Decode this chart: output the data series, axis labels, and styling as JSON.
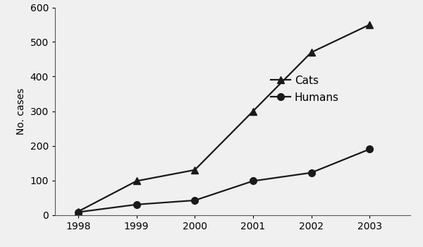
{
  "years": [
    1998,
    1999,
    2000,
    2001,
    2002,
    2003
  ],
  "cats": [
    10,
    98,
    130,
    300,
    470,
    550
  ],
  "humans": [
    8,
    30,
    42,
    98,
    122,
    190
  ],
  "ylabel": "No. cases",
  "ylim": [
    0,
    600
  ],
  "yticks": [
    0,
    100,
    200,
    300,
    400,
    500,
    600
  ],
  "xlim": [
    1997.6,
    2003.7
  ],
  "line_color": "#1a1a1a",
  "marker_triangle": "^",
  "marker_circle": "o",
  "marker_size": 7,
  "line_width": 1.6,
  "legend_cats": "Cats",
  "legend_humans": "Humans",
  "background_color": "#f0f0f0",
  "font_size_ticks": 10,
  "font_size_label": 10
}
